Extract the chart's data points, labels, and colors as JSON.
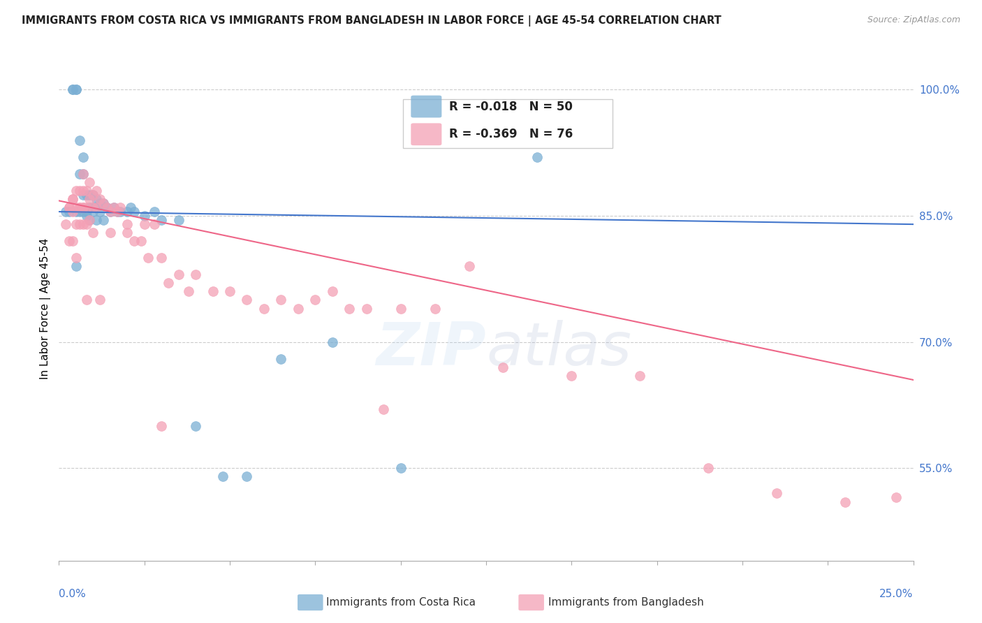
{
  "title": "IMMIGRANTS FROM COSTA RICA VS IMMIGRANTS FROM BANGLADESH IN LABOR FORCE | AGE 45-54 CORRELATION CHART",
  "source": "Source: ZipAtlas.com",
  "ylabel": "In Labor Force | Age 45-54",
  "xlim": [
    0.0,
    0.25
  ],
  "ylim": [
    0.44,
    1.04
  ],
  "watermark": "ZIPatlas",
  "legend_blue_R": "-0.018",
  "legend_blue_N": "50",
  "legend_pink_R": "-0.369",
  "legend_pink_N": "76",
  "blue_color": "#7BAFD4",
  "pink_color": "#F4A0B5",
  "blue_line_color": "#4477CC",
  "pink_line_color": "#EE6688",
  "axis_color": "#4477CC",
  "grid_color": "#CCCCCC",
  "blue_line_x": [
    0.0,
    0.25
  ],
  "blue_line_y": [
    0.855,
    0.84
  ],
  "pink_line_x": [
    0.0,
    0.25
  ],
  "pink_line_y": [
    0.868,
    0.655
  ],
  "blue_scatter_x": [
    0.002,
    0.003,
    0.004,
    0.004,
    0.005,
    0.005,
    0.005,
    0.006,
    0.006,
    0.006,
    0.007,
    0.007,
    0.007,
    0.007,
    0.008,
    0.008,
    0.008,
    0.009,
    0.009,
    0.009,
    0.01,
    0.01,
    0.01,
    0.011,
    0.011,
    0.011,
    0.012,
    0.012,
    0.013,
    0.013,
    0.014,
    0.015,
    0.016,
    0.017,
    0.018,
    0.02,
    0.021,
    0.022,
    0.025,
    0.028,
    0.03,
    0.035,
    0.04,
    0.048,
    0.055,
    0.065,
    0.08,
    0.1,
    0.14,
    0.005
  ],
  "blue_scatter_y": [
    0.855,
    0.855,
    1.0,
    1.0,
    1.0,
    1.0,
    0.855,
    0.94,
    0.9,
    0.855,
    0.92,
    0.9,
    0.875,
    0.855,
    0.875,
    0.855,
    0.85,
    0.875,
    0.86,
    0.845,
    0.875,
    0.86,
    0.855,
    0.87,
    0.86,
    0.845,
    0.865,
    0.855,
    0.865,
    0.845,
    0.86,
    0.855,
    0.86,
    0.855,
    0.855,
    0.855,
    0.86,
    0.855,
    0.85,
    0.855,
    0.845,
    0.845,
    0.6,
    0.54,
    0.54,
    0.68,
    0.7,
    0.55,
    0.92,
    0.79
  ],
  "pink_scatter_x": [
    0.002,
    0.003,
    0.003,
    0.004,
    0.004,
    0.004,
    0.005,
    0.005,
    0.005,
    0.006,
    0.006,
    0.006,
    0.007,
    0.007,
    0.007,
    0.007,
    0.008,
    0.008,
    0.008,
    0.009,
    0.009,
    0.009,
    0.01,
    0.01,
    0.011,
    0.011,
    0.012,
    0.013,
    0.014,
    0.015,
    0.016,
    0.017,
    0.018,
    0.02,
    0.022,
    0.024,
    0.026,
    0.028,
    0.03,
    0.032,
    0.035,
    0.038,
    0.04,
    0.045,
    0.05,
    0.055,
    0.06,
    0.065,
    0.07,
    0.075,
    0.08,
    0.085,
    0.09,
    0.095,
    0.1,
    0.11,
    0.12,
    0.13,
    0.15,
    0.17,
    0.19,
    0.21,
    0.23,
    0.245,
    0.003,
    0.004,
    0.005,
    0.006,
    0.007,
    0.008,
    0.01,
    0.012,
    0.015,
    0.02,
    0.025,
    0.03
  ],
  "pink_scatter_y": [
    0.84,
    0.86,
    0.82,
    0.87,
    0.855,
    0.82,
    0.88,
    0.86,
    0.84,
    0.88,
    0.86,
    0.84,
    0.9,
    0.88,
    0.86,
    0.84,
    0.88,
    0.86,
    0.84,
    0.89,
    0.87,
    0.845,
    0.875,
    0.86,
    0.88,
    0.86,
    0.87,
    0.865,
    0.86,
    0.855,
    0.86,
    0.855,
    0.86,
    0.84,
    0.82,
    0.82,
    0.8,
    0.84,
    0.8,
    0.77,
    0.78,
    0.76,
    0.78,
    0.76,
    0.76,
    0.75,
    0.74,
    0.75,
    0.74,
    0.75,
    0.76,
    0.74,
    0.74,
    0.62,
    0.74,
    0.74,
    0.79,
    0.67,
    0.66,
    0.66,
    0.55,
    0.52,
    0.51,
    0.515,
    0.86,
    0.87,
    0.8,
    0.86,
    0.86,
    0.75,
    0.83,
    0.75,
    0.83,
    0.83,
    0.84,
    0.6
  ]
}
